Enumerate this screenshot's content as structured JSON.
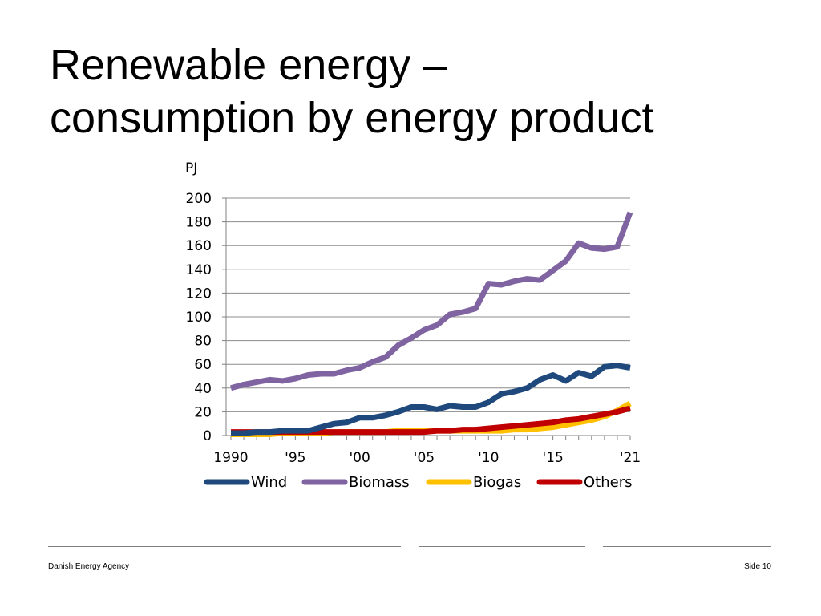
{
  "slide": {
    "title_line1": "Renewable energy –",
    "title_line2": "consumption by energy product",
    "footer_left": "Danish Energy Agency",
    "footer_right": "Side 10"
  },
  "chart_data": {
    "type": "line",
    "title": "",
    "ylabel": "PJ",
    "xlabel": "",
    "ylim": [
      0,
      200
    ],
    "yticks": [
      0,
      20,
      40,
      60,
      80,
      100,
      120,
      140,
      160,
      180,
      200
    ],
    "x": [
      1990,
      1991,
      1992,
      1993,
      1994,
      1995,
      1996,
      1997,
      1998,
      1999,
      2000,
      2001,
      2002,
      2003,
      2004,
      2005,
      2006,
      2007,
      2008,
      2009,
      2010,
      2011,
      2012,
      2013,
      2014,
      2015,
      2016,
      2017,
      2018,
      2019,
      2020,
      2021
    ],
    "xticks": [
      {
        "x": 1990,
        "label": "1990"
      },
      {
        "x": 1995,
        "label": "'95"
      },
      {
        "x": 2000,
        "label": "'00"
      },
      {
        "x": 2005,
        "label": "'05"
      },
      {
        "x": 2010,
        "label": "'10"
      },
      {
        "x": 2015,
        "label": "'15"
      },
      {
        "x": 2021,
        "label": "'21"
      }
    ],
    "grid": true,
    "legend_position": "bottom",
    "series": [
      {
        "name": "Wind",
        "color": "#1f497d",
        "values": [
          2,
          2,
          3,
          3,
          4,
          4,
          4,
          7,
          10,
          11,
          15,
          15,
          17,
          20,
          24,
          24,
          22,
          25,
          24,
          24,
          28,
          35,
          37,
          40,
          47,
          51,
          46,
          53,
          50,
          58,
          59,
          57
        ]
      },
      {
        "name": "Biomass",
        "color": "#8064a2",
        "values": [
          40,
          43,
          45,
          47,
          46,
          48,
          51,
          52,
          52,
          55,
          57,
          62,
          66,
          76,
          82,
          89,
          93,
          102,
          104,
          107,
          128,
          127,
          130,
          132,
          131,
          139,
          147,
          162,
          158,
          157,
          159,
          188
        ]
      },
      {
        "name": "Biogas",
        "color": "#ffc000",
        "values": [
          1,
          1,
          1,
          1,
          2,
          2,
          2,
          2,
          3,
          3,
          3,
          3,
          3,
          4,
          4,
          4,
          4,
          4,
          4,
          4,
          4,
          4,
          5,
          5,
          6,
          7,
          9,
          11,
          13,
          16,
          21,
          27
        ]
      },
      {
        "name": "Others",
        "color": "#c00000",
        "values": [
          3,
          3,
          3,
          3,
          3,
          3,
          3,
          3,
          3,
          3,
          3,
          3,
          3,
          3,
          3,
          3,
          4,
          4,
          5,
          5,
          6,
          7,
          8,
          9,
          10,
          11,
          13,
          14,
          16,
          18,
          20,
          23
        ]
      }
    ]
  }
}
